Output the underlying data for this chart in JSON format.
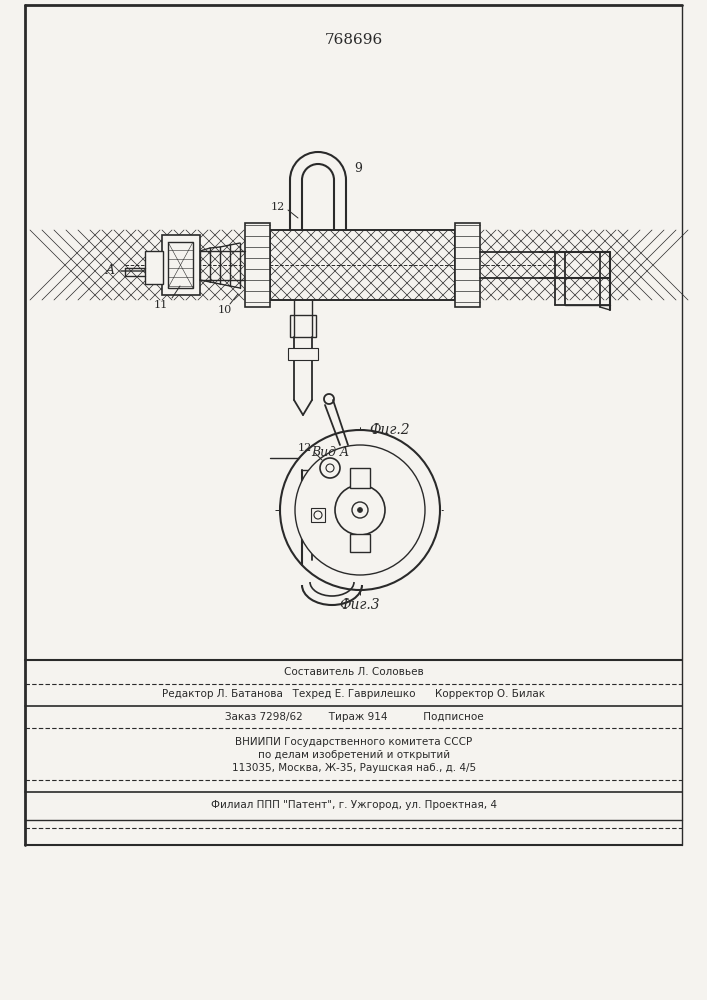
{
  "patent_number": "768696",
  "fig2_label": "Фиг.2",
  "fig3_label": "Фиг.3",
  "view_label": "Вид A",
  "bg_color": "#f5f3ef",
  "line_color": "#2a2a2a",
  "footer_lines": [
    "Составитель Л. Соловьев",
    "Редактор Л. Батанова   Техред Е. Гаврилешко      Корректор О. Билак",
    "Заказ 7298/62        Тираж 914           Подписное",
    "ВНИИПИ Государственного комитета СССР",
    "по делам изобретений и открытий",
    "113035, Москва, Ж-35, Раушская наб., д. 4/5",
    "Филиал ППП \"Патент\", г. Ужгород, ул. Проектная, 4"
  ]
}
